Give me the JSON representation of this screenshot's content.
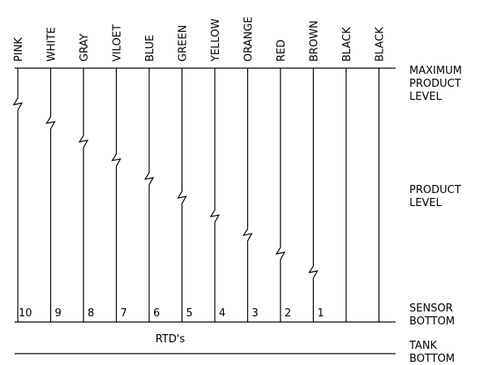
{
  "wires": [
    {
      "color_label": "PINK",
      "number": "10",
      "break_level": 0.0
    },
    {
      "color_label": "WHITE",
      "number": "9",
      "break_level": 0.111
    },
    {
      "color_label": "GRAY",
      "number": "8",
      "break_level": 0.222
    },
    {
      "color_label": "VILOET",
      "number": "7",
      "break_level": 0.333
    },
    {
      "color_label": "BLUE",
      "number": "6",
      "break_level": 0.444
    },
    {
      "color_label": "GREEN",
      "number": "5",
      "break_level": 0.556
    },
    {
      "color_label": "YELLOW",
      "number": "4",
      "break_level": 0.667
    },
    {
      "color_label": "ORANGE",
      "number": "3",
      "break_level": 0.778
    },
    {
      "color_label": "RED",
      "number": "2",
      "break_level": 0.889
    },
    {
      "color_label": "BROWN",
      "number": "1",
      "break_level": 1.0
    },
    {
      "color_label": "BLACK",
      "number": "",
      "break_level": null
    },
    {
      "color_label": "BLACK",
      "number": "",
      "break_level": null
    }
  ],
  "levels": {
    "maximum": [
      "MAXIMUM",
      "PRODUCT",
      "LEVEL"
    ],
    "product": [
      "PRODUCT",
      "LEVEL"
    ],
    "sensor_bottom": [
      "SENSOR",
      "BOTTOM"
    ],
    "tank_bottom": [
      "TANK",
      "BOTTOM"
    ]
  },
  "rtd_label": "RTD's"
}
